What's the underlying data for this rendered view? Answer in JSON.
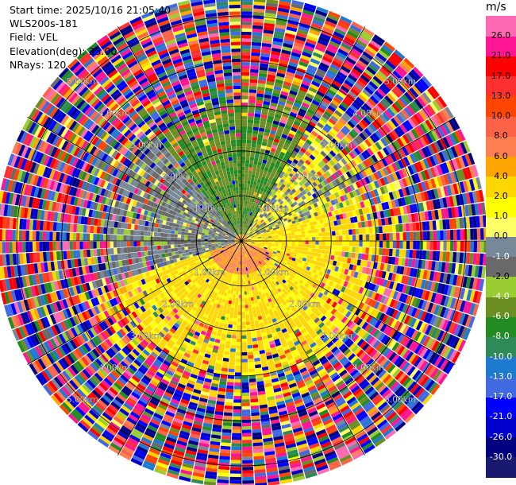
{
  "info": {
    "start_time": "Start time: 2025/10/16 21:05:40",
    "instrument": "WLS200s-181",
    "field": "Field: VEL",
    "elevation": "Elevation(deg): 35.00",
    "nrays": "NRays: 120"
  },
  "colorbar": {
    "unit": "m/s",
    "colors": [
      "#191970",
      "#000080",
      "#0000cd",
      "#0000ff",
      "#4169e1",
      "#1e7ad0",
      "#2e8b57",
      "#228b22",
      "#6b8e23",
      "#9acd32",
      "#696969",
      "#778899",
      "#ffff66",
      "#ffff00",
      "#ffd700",
      "#ffa500",
      "#ff7f50",
      "#ff6347",
      "#ff4500",
      "#ff3030",
      "#ff0000",
      "#ff1493",
      "#ff69b4"
    ],
    "ticks": [
      "-30.0",
      "-26.0",
      "-21.0",
      "-17.0",
      "-13.0",
      "-10.0",
      "-8.0",
      "-6.0",
      "-4.0",
      "-2.0",
      "-1.0",
      "0.0",
      "1.0",
      "2.0",
      "4.0",
      "6.0",
      "8.0",
      "10.0",
      "13.0",
      "17.0",
      "21.0",
      "26.0"
    ]
  },
  "chart_data": {
    "type": "heatmap",
    "subtype": "radar PPI (polar)",
    "field": "VEL",
    "units": "m/s",
    "range_rings_km": [
      1.0,
      2.0,
      3.0,
      4.0,
      5.0
    ],
    "ring_labels": [
      "1.00km",
      "2.00km",
      "3.00km",
      "4.00km",
      "5.00km"
    ],
    "max_range_km": 5.5,
    "n_rays": 120,
    "azimuth_lines_deg": [
      0,
      30,
      60,
      90,
      120,
      150,
      180,
      210,
      240,
      270,
      300,
      330
    ],
    "color_scale": [
      -30.0,
      -26.0,
      -21.0,
      -17.0,
      -13.0,
      -10.0,
      -8.0,
      -6.0,
      -4.0,
      -2.0,
      -1.0,
      0.0,
      1.0,
      2.0,
      4.0,
      6.0,
      8.0,
      10.0,
      13.0,
      17.0,
      21.0,
      26.0
    ],
    "regions": [
      {
        "sector": "north",
        "range_km": [
          0.0,
          2.5
        ],
        "velocity_ms": [
          -8.0,
          -4.0
        ]
      },
      {
        "sector": "west",
        "range_km": [
          0.0,
          3.0
        ],
        "velocity_ms": [
          -2.0,
          0.0
        ]
      },
      {
        "sector": "east-south",
        "range_km": [
          0.0,
          3.0
        ],
        "velocity_ms": [
          1.0,
          4.0
        ]
      },
      {
        "sector": "center-south",
        "range_km": [
          0.0,
          0.7
        ],
        "velocity_ms": [
          4.0,
          8.0
        ]
      },
      {
        "sector": "all",
        "range_km": [
          3.0,
          5.5
        ],
        "velocity_ms": [
          -30.0,
          30.0
        ],
        "note": "noise"
      }
    ]
  }
}
